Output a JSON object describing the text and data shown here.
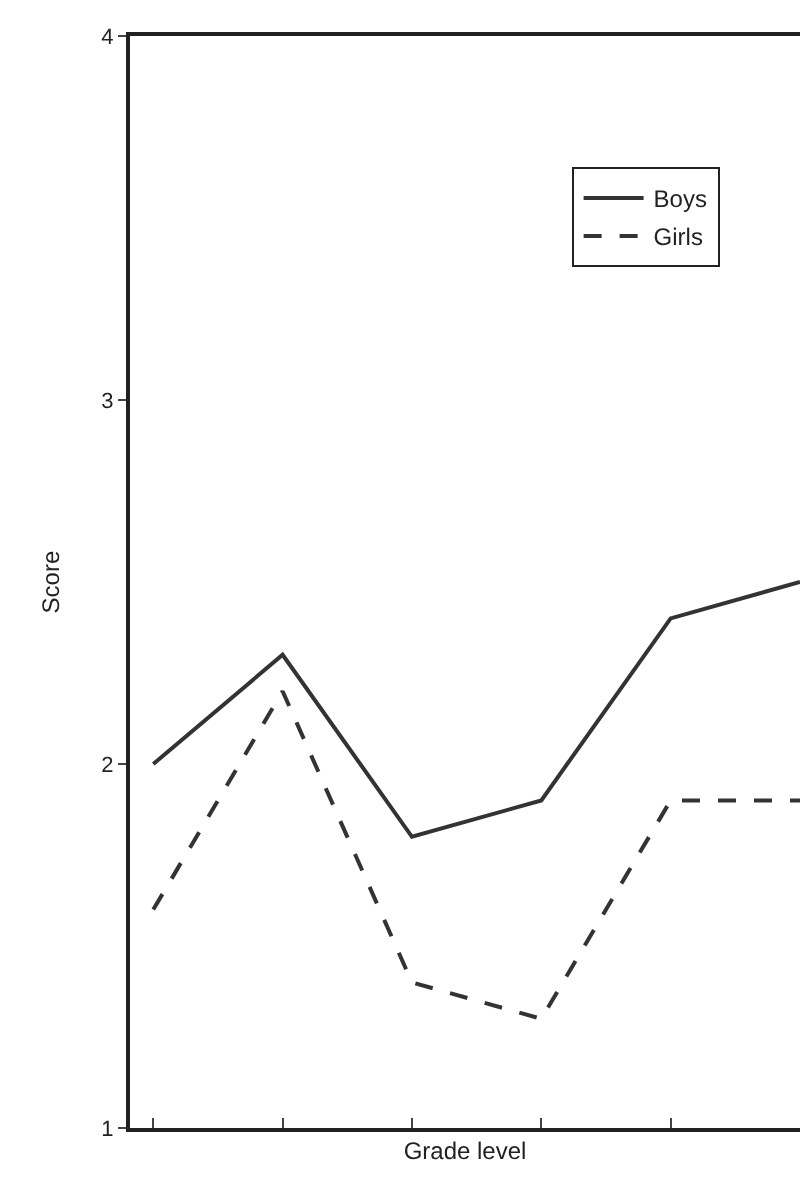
{
  "chart_data": {
    "type": "line",
    "xlabel": "Grade level",
    "ylabel": "Score",
    "categories": [
      null,
      null,
      null,
      null,
      null,
      null
    ],
    "series": [
      {
        "name": "Boys",
        "color": "#333333",
        "line_style": "solid",
        "values": [
          2.0,
          2.3,
          1.8,
          1.9,
          2.4,
          2.5
        ]
      },
      {
        "name": "Girls",
        "color": "#333333",
        "line_style": "dashed",
        "values": [
          1.6,
          2.2,
          1.4,
          1.3,
          1.9,
          1.9
        ]
      }
    ],
    "ylim": [
      1,
      4
    ],
    "yticks": [
      1,
      2,
      3,
      4
    ],
    "legend": "top right",
    "marker": "none"
  }
}
